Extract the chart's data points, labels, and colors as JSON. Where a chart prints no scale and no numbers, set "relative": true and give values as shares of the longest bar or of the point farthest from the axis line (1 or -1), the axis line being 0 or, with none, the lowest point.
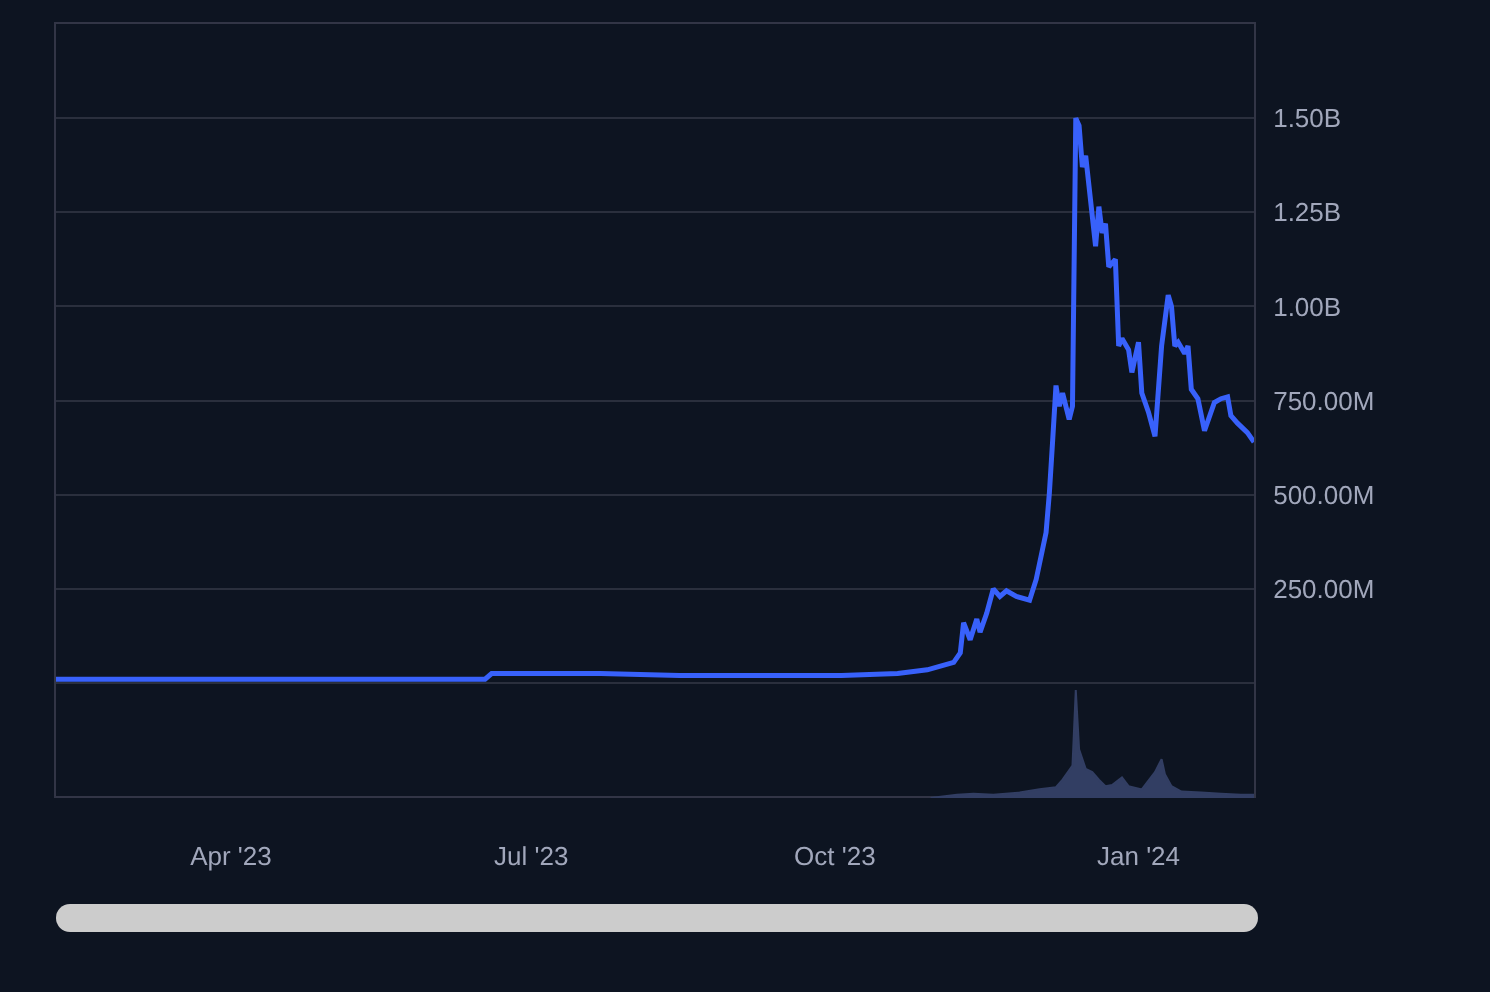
{
  "chart_data": [
    {
      "type": "line",
      "x": [
        "2023-02-07",
        "2023-06-17",
        "2023-06-19",
        "2023-07-22",
        "2023-08-15",
        "2023-09-08",
        "2023-10-03",
        "2023-10-20",
        "2023-10-29",
        "2023-11-06",
        "2023-11-08",
        "2023-11-09",
        "2023-11-11",
        "2023-11-13",
        "2023-11-14",
        "2023-11-16",
        "2023-11-18",
        "2023-11-20",
        "2023-11-22",
        "2023-11-25",
        "2023-11-29",
        "2023-12-01",
        "2023-12-04",
        "2023-12-05",
        "2023-12-06",
        "2023-12-07",
        "2023-12-08",
        "2023-12-09",
        "2023-12-11",
        "2023-12-12",
        "2023-12-13",
        "2023-12-14",
        "2023-12-15",
        "2023-12-16",
        "2023-12-17",
        "2023-12-19",
        "2023-12-20",
        "2023-12-21",
        "2023-12-22",
        "2023-12-23",
        "2023-12-25",
        "2023-12-26",
        "2023-12-27",
        "2023-12-29",
        "2023-12-30",
        "2024-01-01",
        "2024-01-02",
        "2024-01-04",
        "2024-01-06",
        "2024-01-08",
        "2024-01-10",
        "2024-01-11",
        "2024-01-12",
        "2024-01-13",
        "2024-01-15",
        "2024-01-16",
        "2024-01-17",
        "2024-01-19",
        "2024-01-21",
        "2024-01-24",
        "2024-01-26",
        "2024-01-28",
        "2024-01-29",
        "2024-01-31",
        "2024-02-03",
        "2024-02-05"
      ],
      "series": [
        {
          "color": "#3861fb",
          "values": [
            10000000,
            10000000,
            25000000,
            25000000,
            20000000,
            20000000,
            20000000,
            25000000,
            35000000,
            55000000,
            80000000,
            160000000,
            115000000,
            170000000,
            135000000,
            185000000,
            250000000,
            230000000,
            245000000,
            230000000,
            220000000,
            275000000,
            400000000,
            505000000,
            645000000,
            790000000,
            735000000,
            770000000,
            700000000,
            735000000,
            1500000000,
            1480000000,
            1370000000,
            1400000000,
            1320000000,
            1160000000,
            1265000000,
            1195000000,
            1220000000,
            1105000000,
            1125000000,
            895000000,
            915000000,
            885000000,
            825000000,
            905000000,
            770000000,
            720000000,
            655000000,
            895000000,
            1030000000,
            1000000000,
            895000000,
            905000000,
            875000000,
            895000000,
            780000000,
            755000000,
            670000000,
            745000000,
            755000000,
            760000000,
            710000000,
            690000000,
            665000000,
            640000000
          ]
        }
      ],
      "xlim": [
        "2023-02-07",
        "2024-02-05"
      ],
      "xticks": [
        {
          "value": "2023-04-01",
          "label": "Apr '23"
        },
        {
          "value": "2023-07-01",
          "label": "Jul '23"
        },
        {
          "value": "2023-10-01",
          "label": "Oct '23"
        },
        {
          "value": "2024-01-01",
          "label": "Jan '24"
        }
      ],
      "ylim": [
        -300000000,
        1750000000
      ],
      "yticks": [
        {
          "value": 0,
          "label": null
        },
        {
          "value": 250000000,
          "label": "250.00M"
        },
        {
          "value": 500000000,
          "label": "500.00M"
        },
        {
          "value": 750000000,
          "label": "750.00M"
        },
        {
          "value": 1000000000,
          "label": "1.00B"
        },
        {
          "value": 1250000000,
          "label": "1.25B"
        },
        {
          "value": 1500000000,
          "label": "1.50B"
        }
      ],
      "grid": "y"
    },
    {
      "type": "area",
      "relative": true,
      "x": [
        "2023-10-30",
        "2023-11-07",
        "2023-11-12",
        "2023-11-18",
        "2023-11-26",
        "2023-12-02",
        "2023-12-07",
        "2023-12-09",
        "2023-12-12",
        "2023-12-13",
        "2023-12-14",
        "2023-12-16",
        "2023-12-18",
        "2023-12-20",
        "2023-12-22",
        "2023-12-24",
        "2023-12-27",
        "2023-12-29",
        "2024-01-02",
        "2024-01-06",
        "2024-01-08",
        "2024-01-09",
        "2024-01-11",
        "2024-01-14",
        "2024-01-20",
        "2024-01-26",
        "2024-02-01",
        "2024-02-05"
      ],
      "values": [
        0,
        0.03,
        0.04,
        0.03,
        0.05,
        0.08,
        0.1,
        0.17,
        0.3,
        1,
        0.45,
        0.27,
        0.24,
        0.17,
        0.11,
        0.12,
        0.19,
        0.11,
        0.08,
        0.24,
        0.36,
        0.22,
        0.11,
        0.06,
        0.05,
        0.04,
        0.03,
        0.03
      ],
      "color": "#323e63",
      "xlim": [
        "2023-02-07",
        "2024-02-05"
      ],
      "tick_labels": false
    }
  ]
}
